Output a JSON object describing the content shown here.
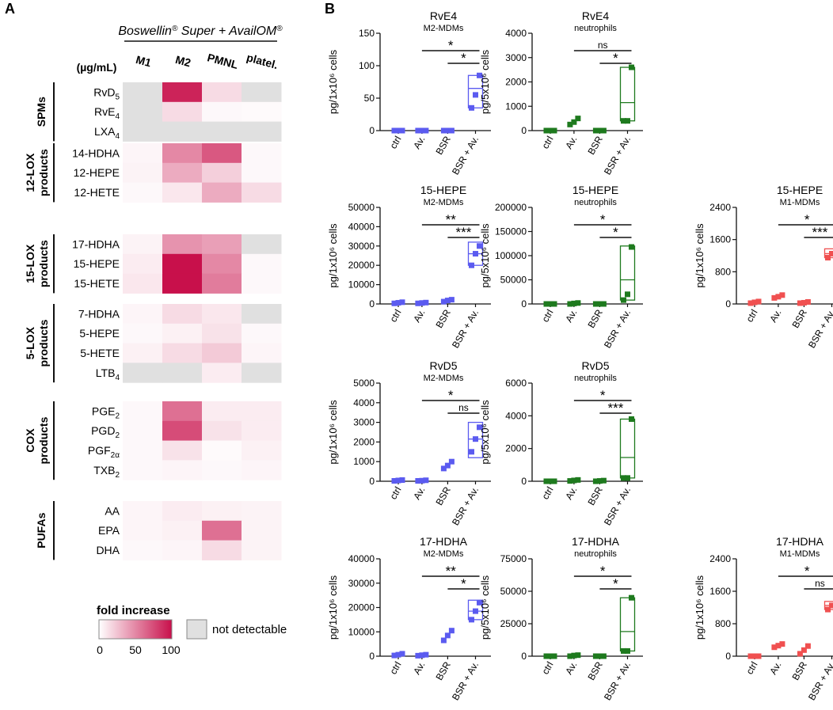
{
  "panel_a": {
    "letter": "A",
    "title_main": "Boswellin",
    "title_sup1": "®",
    "title_mid": " Super + AvailOM",
    "title_sup2": "®",
    "unit": "(µg/mL)",
    "columns": [
      "M1",
      "M2",
      "PMNL",
      "platel."
    ],
    "groups": [
      {
        "label": [
          "SPMs"
        ],
        "rows": [
          {
            "base": "RvD",
            "sub": "5",
            "values": [
              null,
              92,
              15,
              null
            ]
          },
          {
            "base": "RvE",
            "sub": "4",
            "values": [
              null,
              15,
              3,
              2
            ]
          },
          {
            "base": "LXA",
            "sub": "4",
            "values": [
              null,
              null,
              null,
              null
            ]
          }
        ]
      },
      {
        "label": [
          "12-LOX",
          "products"
        ],
        "rows": [
          {
            "base": "14-HDHA",
            "sub": "",
            "values": [
              4,
              50,
              70,
              3
            ]
          },
          {
            "base": "12-HEPE",
            "sub": "",
            "values": [
              5,
              35,
              20,
              3
            ]
          },
          {
            "base": "12-HETE",
            "sub": "",
            "values": [
              3,
              10,
              35,
              15
            ]
          }
        ]
      },
      {
        "label": [
          "15-LOX",
          "products"
        ],
        "rows": [
          {
            "base": "17-HDHA",
            "sub": "",
            "values": [
              5,
              45,
              40,
              null
            ]
          },
          {
            "base": "15-HEPE",
            "sub": "",
            "values": [
              8,
              100,
              50,
              3
            ]
          },
          {
            "base": "15-HETE",
            "sub": "",
            "values": [
              10,
              100,
              55,
              3
            ]
          }
        ]
      },
      {
        "label": [
          "5-LOX",
          "products"
        ],
        "rows": [
          {
            "base": "7-HDHA",
            "sub": "",
            "values": [
              4,
              15,
              10,
              null
            ]
          },
          {
            "base": "5-HEPE",
            "sub": "",
            "values": [
              3,
              6,
              12,
              3
            ]
          },
          {
            "base": "5-HETE",
            "sub": "",
            "values": [
              6,
              15,
              22,
              4
            ]
          },
          {
            "base": "LTB",
            "sub": "4",
            "values": [
              null,
              null,
              8,
              null
            ]
          }
        ]
      },
      {
        "label": [
          "COX",
          "products"
        ],
        "rows": [
          {
            "base": "PGE",
            "sub": "2",
            "values": [
              3,
              60,
              8,
              8
            ]
          },
          {
            "base": "PGD",
            "sub": "2",
            "values": [
              3,
              75,
              12,
              8
            ]
          },
          {
            "base": "PGF",
            "sub": "2α",
            "values": [
              3,
              12,
              2,
              6
            ]
          },
          {
            "base": "TXB",
            "sub": "2",
            "values": [
              3,
              4,
              3,
              4
            ]
          }
        ]
      },
      {
        "label": [
          "PUFAs"
        ],
        "rows": [
          {
            "base": "AA",
            "sub": "",
            "values": [
              4,
              8,
              6,
              5
            ]
          },
          {
            "base": "EPA",
            "sub": "",
            "values": [
              4,
              6,
              60,
              5
            ]
          },
          {
            "base": "DHA",
            "sub": "",
            "values": [
              3,
              4,
              15,
              5
            ]
          }
        ]
      }
    ],
    "legend": {
      "title": "fold increase",
      "ticks": [
        "0",
        "50",
        "100"
      ],
      "nd_label": "not detectable",
      "color_low": "#ffffff",
      "color_high": "#c8104b",
      "nd_color": "#e0e0e0"
    }
  },
  "panel_b": {
    "letter": "B"
  },
  "chart_data": [
    {
      "type": "scatter",
      "title": "RvE4",
      "subtitle": "M2-MDMs",
      "ylabel": "pg/1x10⁶ cells",
      "ylim": [
        0,
        150
      ],
      "yticks": [
        "0",
        "50",
        "100",
        "150"
      ],
      "categories": [
        "ctrl",
        "Av.",
        "BSR",
        "BSR + Av."
      ],
      "color": "#5b5bf0",
      "points": [
        [
          0,
          0,
          0
        ],
        [
          0,
          0,
          0
        ],
        [
          0,
          0,
          0
        ],
        [
          35,
          55,
          85
        ]
      ],
      "box": [
        35,
        65,
        85
      ],
      "sig": [
        {
          "from": 1,
          "label": "*"
        },
        {
          "from": 2,
          "label": "*"
        }
      ]
    },
    {
      "type": "scatter",
      "title": "RvE4",
      "subtitle": "neutrophils",
      "ylabel": "pg/5x10⁶ cells",
      "ylim": [
        0,
        4000
      ],
      "yticks": [
        "0",
        "1000",
        "2000",
        "3000",
        "4000"
      ],
      "categories": [
        "ctrl",
        "Av.",
        "BSR",
        "BSR + Av."
      ],
      "color": "#1e7a1e",
      "points": [
        [
          0,
          0,
          0
        ],
        [
          250,
          350,
          500
        ],
        [
          0,
          0,
          0
        ],
        [
          400,
          400,
          2600
        ]
      ],
      "box": [
        400,
        1150,
        2600
      ],
      "sig": [
        {
          "from": 1,
          "label": "ns"
        },
        {
          "from": 2,
          "label": "*"
        }
      ]
    },
    {
      "type": "scatter",
      "title": "15-HEPE",
      "subtitle": "M2-MDMs",
      "ylabel": "pg/1x10⁶ cells",
      "ylim": [
        0,
        50000
      ],
      "yticks": [
        "0",
        "10000",
        "20000",
        "30000",
        "40000",
        "50000"
      ],
      "categories": [
        "ctrl",
        "Av.",
        "BSR",
        "BSR + Av."
      ],
      "color": "#5b5bf0",
      "points": [
        [
          300,
          600,
          900
        ],
        [
          300,
          500,
          700
        ],
        [
          1200,
          1800,
          2200
        ],
        [
          20000,
          26000,
          30000
        ]
      ],
      "box": [
        20000,
        26000,
        32000
      ],
      "sig": [
        {
          "from": 1,
          "label": "**"
        },
        {
          "from": 2,
          "label": "***"
        }
      ]
    },
    {
      "type": "scatter",
      "title": "15-HEPE",
      "subtitle": "neutrophils",
      "ylabel": "pg/5x10⁶ cells",
      "ylim": [
        0,
        200000
      ],
      "yticks": [
        "0",
        "50000",
        "100000",
        "150000",
        "200000"
      ],
      "categories": [
        "ctrl",
        "Av.",
        "BSR",
        "BSR + Av."
      ],
      "color": "#1e7a1e",
      "points": [
        [
          0,
          0,
          0
        ],
        [
          0,
          1000,
          2000
        ],
        [
          0,
          0,
          0
        ],
        [
          8000,
          20000,
          118000
        ]
      ],
      "box": [
        8000,
        50000,
        120000
      ],
      "sig": [
        {
          "from": 1,
          "label": "*"
        },
        {
          "from": 2,
          "label": "*"
        }
      ]
    },
    {
      "type": "scatter",
      "title": "15-HEPE",
      "subtitle": "M1-MDMs",
      "ylabel": "pg/1x10⁶ cells",
      "ylim": [
        0,
        2400
      ],
      "yticks": [
        "0",
        "800",
        "1600",
        "2400"
      ],
      "categories": [
        "ctrl",
        "Av.",
        "BSR",
        "BSR + Av."
      ],
      "color": "#f05050",
      "points": [
        [
          20,
          40,
          60
        ],
        [
          150,
          180,
          220
        ],
        [
          20,
          30,
          50
        ],
        [
          1150,
          1250,
          1350
        ]
      ],
      "box": [
        1150,
        1250,
        1370
      ],
      "sig": [
        {
          "from": 1,
          "label": "*"
        },
        {
          "from": 2,
          "label": "***"
        }
      ]
    },
    {
      "type": "scatter",
      "title": "RvD5",
      "subtitle": "M2-MDMs",
      "ylabel": "pg/1x10⁶ cells",
      "ylim": [
        0,
        5000
      ],
      "yticks": [
        "0",
        "1000",
        "2000",
        "3000",
        "4000",
        "5000"
      ],
      "categories": [
        "ctrl",
        "Av.",
        "BSR",
        "BSR + Av."
      ],
      "color": "#5b5bf0",
      "points": [
        [
          20,
          40,
          60
        ],
        [
          20,
          30,
          50
        ],
        [
          650,
          800,
          1000
        ],
        [
          1500,
          2150,
          2750
        ]
      ],
      "box": [
        1200,
        2150,
        3000
      ],
      "sig": [
        {
          "from": 1,
          "label": "*"
        },
        {
          "from": 2,
          "label": "ns"
        }
      ]
    },
    {
      "type": "scatter",
      "title": "RvD5",
      "subtitle": "neutrophils",
      "ylabel": "pg/5x10⁶ cells",
      "ylim": [
        0,
        6000
      ],
      "yticks": [
        "0",
        "2000",
        "4000",
        "6000"
      ],
      "categories": [
        "ctrl",
        "Av.",
        "BSR",
        "BSR + Av."
      ],
      "color": "#1e7a1e",
      "points": [
        [
          0,
          0,
          0
        ],
        [
          20,
          50,
          80
        ],
        [
          0,
          20,
          40
        ],
        [
          200,
          200,
          3800
        ]
      ],
      "box": [
        200,
        1450,
        3800
      ],
      "sig": [
        {
          "from": 1,
          "label": "*"
        },
        {
          "from": 2,
          "label": "***"
        }
      ]
    },
    {
      "type": "scatter",
      "title": "17-HDHA",
      "subtitle": "M2-MDMs",
      "ylabel": "pg/1x10⁶ cells",
      "ylim": [
        0,
        40000
      ],
      "yticks": [
        "0",
        "10000",
        "20000",
        "30000",
        "40000"
      ],
      "categories": [
        "ctrl",
        "Av.",
        "BSR",
        "BSR + Av."
      ],
      "color": "#5b5bf0",
      "points": [
        [
          300,
          600,
          1000
        ],
        [
          200,
          400,
          600
        ],
        [
          6500,
          8500,
          10500
        ],
        [
          15000,
          18500,
          22000
        ]
      ],
      "box": [
        15000,
        18500,
        23000
      ],
      "sig": [
        {
          "from": 1,
          "label": "**"
        },
        {
          "from": 2,
          "label": "*"
        }
      ]
    },
    {
      "type": "scatter",
      "title": "17-HDHA",
      "subtitle": "neutrophils",
      "ylabel": "pg/5x10⁶ cells",
      "ylim": [
        0,
        75000
      ],
      "yticks": [
        "0",
        "25000",
        "50000",
        "75000"
      ],
      "categories": [
        "ctrl",
        "Av.",
        "BSR",
        "BSR + Av."
      ],
      "color": "#1e7a1e",
      "points": [
        [
          0,
          0,
          0
        ],
        [
          0,
          500,
          800
        ],
        [
          0,
          0,
          0
        ],
        [
          4000,
          4000,
          45000
        ]
      ],
      "box": [
        4000,
        19000,
        45000
      ],
      "sig": [
        {
          "from": 1,
          "label": "*"
        },
        {
          "from": 2,
          "label": "*"
        }
      ]
    },
    {
      "type": "scatter",
      "title": "17-HDHA",
      "subtitle": "M1-MDMs",
      "ylabel": "pg/1x10⁶ cells",
      "ylim": [
        0,
        2400
      ],
      "yticks": [
        "0",
        "800",
        "1600",
        "2400"
      ],
      "categories": [
        "ctrl",
        "Av.",
        "BSR",
        "BSR + Av."
      ],
      "color": "#f05050",
      "points": [
        [
          0,
          0,
          0
        ],
        [
          220,
          260,
          300
        ],
        [
          60,
          150,
          250
        ],
        [
          1150,
          1250,
          1350
        ]
      ],
      "box": [
        1150,
        1250,
        1350
      ],
      "sig": [
        {
          "from": 1,
          "label": "*"
        },
        {
          "from": 2,
          "label": "ns"
        }
      ]
    }
  ]
}
